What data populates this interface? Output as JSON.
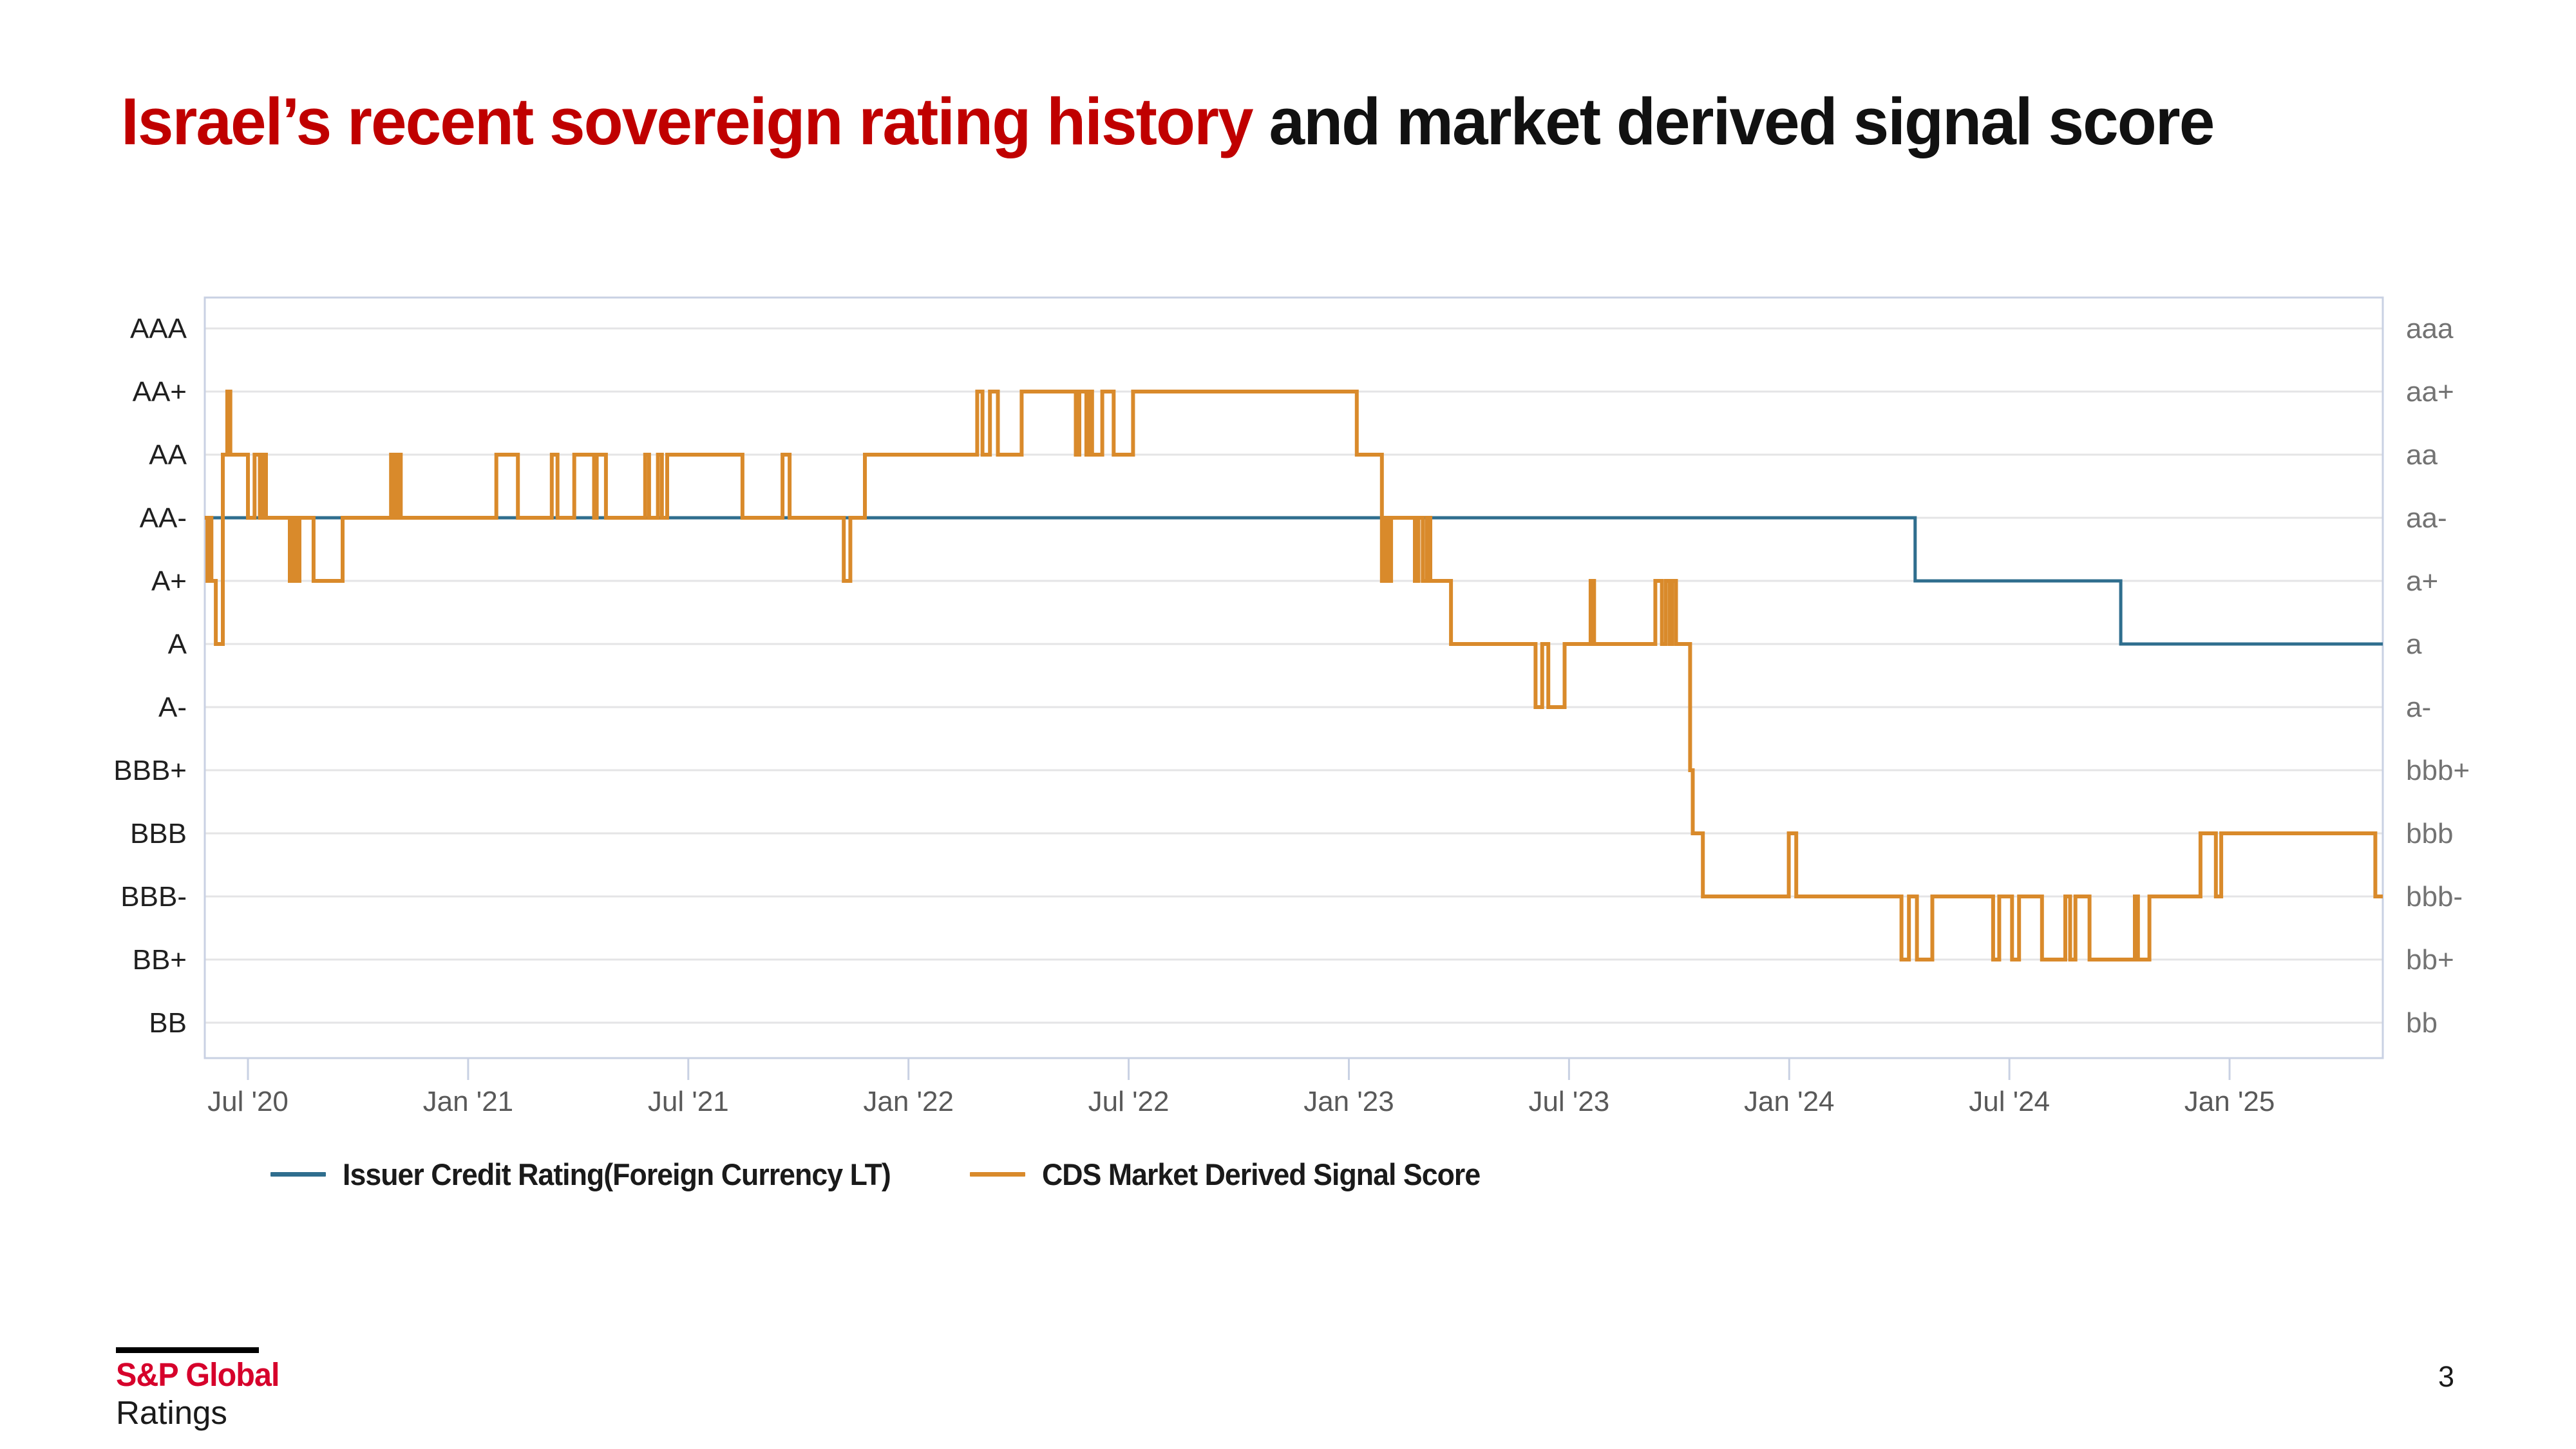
{
  "title": {
    "highlight": "Israel’s recent sovereign rating history",
    "rest": " and market derived signal score"
  },
  "page_number": "3",
  "logo": {
    "line1": "S&P Global",
    "line2": "Ratings"
  },
  "legend": [
    {
      "label": "Issuer Credit Rating(Foreign Currency LT)",
      "color": "#2f6e8e"
    },
    {
      "label": "CDS Market Derived Signal Score",
      "color": "#d98a2b"
    }
  ],
  "colors": {
    "title_highlight": "#c00000",
    "title_rest": "#111111",
    "icr_line": "#2f6e8e",
    "mds_line": "#d98a2b",
    "gridline": "#e4e4e6",
    "plot_border": "#c9d1e3",
    "x_label": "#595959",
    "y_label_left": "#1f1f1f",
    "y_label_right": "#737373",
    "logo_red": "#d6002b"
  },
  "chart_data": {
    "type": "line",
    "step": true,
    "grid": true,
    "legend_position": "bottom",
    "x_unit": "decimal_year",
    "x_range": [
      2020.402,
      2025.348
    ],
    "y_levels_left": [
      "AAA",
      "AA+",
      "AA",
      "AA-",
      "A+",
      "A",
      "A-",
      "BBB+",
      "BBB",
      "BBB-",
      "BB+",
      "BB"
    ],
    "y_levels_right": [
      "aaa",
      "aa+",
      "aa",
      "aa-",
      "a+",
      "a",
      "a-",
      "bbb+",
      "bbb",
      "bbb-",
      "bb+",
      "bb"
    ],
    "x_ticks": [
      {
        "year": 2020.5,
        "label": "Jul '20"
      },
      {
        "year": 2021.0,
        "label": "Jan '21"
      },
      {
        "year": 2021.5,
        "label": "Jul '21"
      },
      {
        "year": 2022.0,
        "label": "Jan '22"
      },
      {
        "year": 2022.5,
        "label": "Jul '22"
      },
      {
        "year": 2023.0,
        "label": "Jan '23"
      },
      {
        "year": 2023.5,
        "label": "Jul '23"
      },
      {
        "year": 2024.0,
        "label": "Jan '24"
      },
      {
        "year": 2024.5,
        "label": "Jul '24"
      },
      {
        "year": 2025.0,
        "label": "Jan '25"
      }
    ],
    "series": [
      {
        "id": "icr",
        "name": "Issuer Credit Rating(Foreign Currency LT)",
        "color": "#2f6e8e",
        "width": 5,
        "steps": [
          [
            2020.402,
            "AA-"
          ],
          [
            2024.286,
            "A+"
          ],
          [
            2024.753,
            "A"
          ]
        ]
      },
      {
        "id": "mds",
        "name": "CDS Market Derived Signal Score",
        "color": "#d98a2b",
        "width": 6,
        "steps": [
          [
            2020.402,
            "AA-"
          ],
          [
            2020.408,
            "A+"
          ],
          [
            2020.413,
            "AA-"
          ],
          [
            2020.417,
            "A+"
          ],
          [
            2020.427,
            "A"
          ],
          [
            2020.443,
            "AA"
          ],
          [
            2020.453,
            "AA+"
          ],
          [
            2020.46,
            "AA"
          ],
          [
            2020.5,
            "AA-"
          ],
          [
            2020.515,
            "AA"
          ],
          [
            2020.527,
            "AA-"
          ],
          [
            2020.533,
            "AA"
          ],
          [
            2020.541,
            "AA-"
          ],
          [
            2020.595,
            "A+"
          ],
          [
            2020.603,
            "AA-"
          ],
          [
            2020.61,
            "A+"
          ],
          [
            2020.617,
            "AA-"
          ],
          [
            2020.649,
            "A+"
          ],
          [
            2020.715,
            "AA-"
          ],
          [
            2020.825,
            "AA"
          ],
          [
            2020.833,
            "AA-"
          ],
          [
            2020.84,
            "AA"
          ],
          [
            2020.847,
            "AA-"
          ],
          [
            2021.064,
            "AA"
          ],
          [
            2021.113,
            "AA-"
          ],
          [
            2021.19,
            "AA"
          ],
          [
            2021.203,
            "AA-"
          ],
          [
            2021.241,
            "AA"
          ],
          [
            2021.286,
            "AA-"
          ],
          [
            2021.292,
            "AA"
          ],
          [
            2021.313,
            "AA-"
          ],
          [
            2021.402,
            "AA"
          ],
          [
            2021.411,
            "AA-"
          ],
          [
            2021.431,
            "AA"
          ],
          [
            2021.44,
            "AA-"
          ],
          [
            2021.452,
            "AA"
          ],
          [
            2021.623,
            "AA-"
          ],
          [
            2021.714,
            "AA"
          ],
          [
            2021.73,
            "AA-"
          ],
          [
            2021.853,
            "A+"
          ],
          [
            2021.868,
            "AA-"
          ],
          [
            2021.901,
            "AA"
          ],
          [
            2022.156,
            "AA+"
          ],
          [
            2022.168,
            "AA"
          ],
          [
            2022.185,
            "AA+"
          ],
          [
            2022.203,
            "AA"
          ],
          [
            2022.257,
            "AA+"
          ],
          [
            2022.38,
            "AA"
          ],
          [
            2022.388,
            "AA+"
          ],
          [
            2022.404,
            "AA"
          ],
          [
            2022.41,
            "AA+"
          ],
          [
            2022.417,
            "AA"
          ],
          [
            2022.44,
            "AA+"
          ],
          [
            2022.466,
            "AA"
          ],
          [
            2022.51,
            "AA+"
          ],
          [
            2023.018,
            "AA"
          ],
          [
            2023.075,
            "A+"
          ],
          [
            2023.083,
            "AA-"
          ],
          [
            2023.09,
            "A+"
          ],
          [
            2023.096,
            "AA-"
          ],
          [
            2023.15,
            "A+"
          ],
          [
            2023.158,
            "AA-"
          ],
          [
            2023.168,
            "A+"
          ],
          [
            2023.177,
            "AA-"
          ],
          [
            2023.185,
            "A+"
          ],
          [
            2023.232,
            "A"
          ],
          [
            2023.424,
            "A-"
          ],
          [
            2023.439,
            "A"
          ],
          [
            2023.453,
            "A-"
          ],
          [
            2023.49,
            "A"
          ],
          [
            2023.549,
            "A+"
          ],
          [
            2023.557,
            "A"
          ],
          [
            2023.696,
            "A+"
          ],
          [
            2023.711,
            "A"
          ],
          [
            2023.72,
            "A+"
          ],
          [
            2023.729,
            "A"
          ],
          [
            2023.734,
            "A+"
          ],
          [
            2023.743,
            "A"
          ],
          [
            2023.775,
            "BBB+"
          ],
          [
            2023.781,
            "BBB"
          ],
          [
            2023.804,
            "BBB-"
          ],
          [
            2023.999,
            "BBB"
          ],
          [
            2024.016,
            "BBB-"
          ],
          [
            2024.255,
            "BB+"
          ],
          [
            2024.272,
            "BBB-"
          ],
          [
            2024.29,
            "BB+"
          ],
          [
            2024.325,
            "BBB-"
          ],
          [
            2024.463,
            "BB+"
          ],
          [
            2024.477,
            "BBB-"
          ],
          [
            2024.506,
            "BB+"
          ],
          [
            2024.522,
            "BBB-"
          ],
          [
            2024.574,
            "BB+"
          ],
          [
            2024.627,
            "BBB-"
          ],
          [
            2024.638,
            "BB+"
          ],
          [
            2024.65,
            "BBB-"
          ],
          [
            2024.682,
            "BB+"
          ],
          [
            2024.785,
            "BBB-"
          ],
          [
            2024.792,
            "BB+"
          ],
          [
            2024.818,
            "BBB-"
          ],
          [
            2024.934,
            "BBB"
          ],
          [
            2024.969,
            "BBB-"
          ],
          [
            2024.981,
            "BBB"
          ],
          [
            2025.331,
            "BBB-"
          ]
        ]
      }
    ]
  }
}
